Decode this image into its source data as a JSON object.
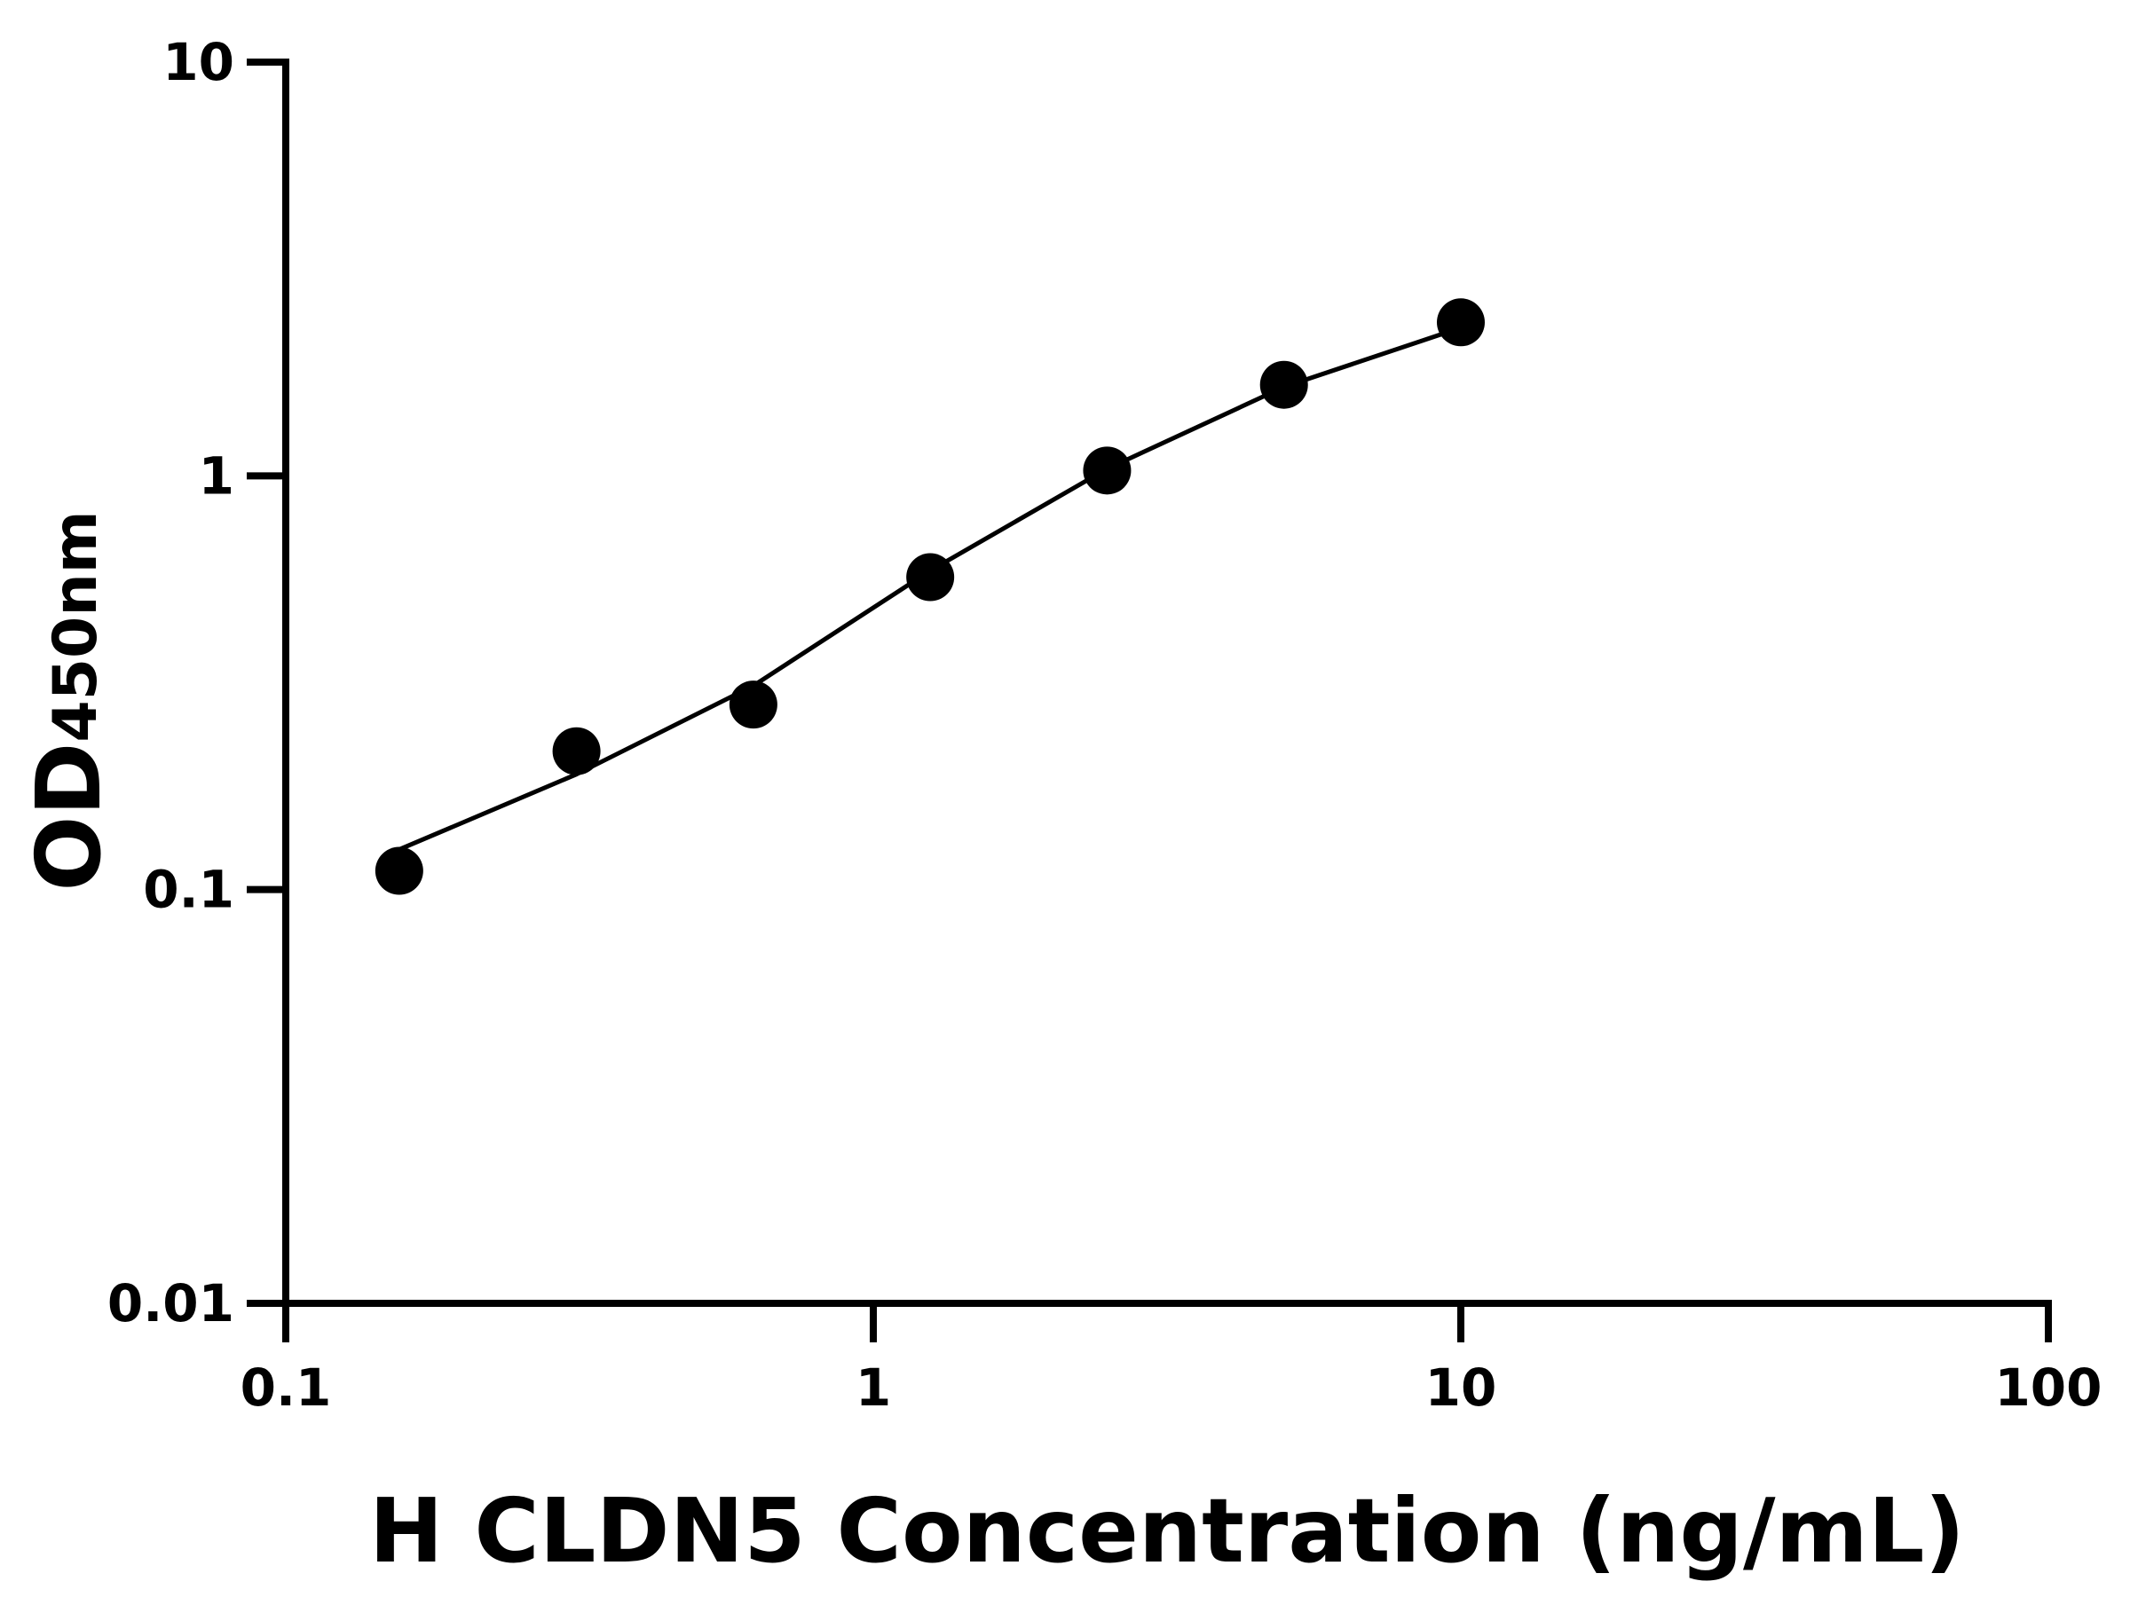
{
  "chart_data": {
    "type": "scatter",
    "x_label": "H CLDN5 Concentration (ng/mL)",
    "y_label": "OD",
    "y_label_sub": "450nm",
    "xscale": "log",
    "yscale": "log",
    "xlim": [
      0.1,
      100
    ],
    "xticks": [
      0.1,
      1,
      10,
      100
    ],
    "ylim": [
      0.01,
      10
    ],
    "yticks": [
      0.01,
      0.1,
      1,
      10
    ],
    "points": {
      "color": "#000000",
      "x": [
        0.156,
        0.3125,
        0.625,
        1.25,
        2.5,
        5,
        10
      ],
      "y": [
        0.111,
        0.216,
        0.28,
        0.569,
        1.03,
        1.66,
        2.35
      ]
    },
    "fit": {
      "color": "#000000",
      "x": [
        0.156,
        0.3125,
        0.625,
        1.25,
        2.5,
        5,
        10
      ],
      "y": [
        0.125,
        0.19,
        0.311,
        0.59,
        1.04,
        1.64,
        2.28
      ]
    }
  }
}
